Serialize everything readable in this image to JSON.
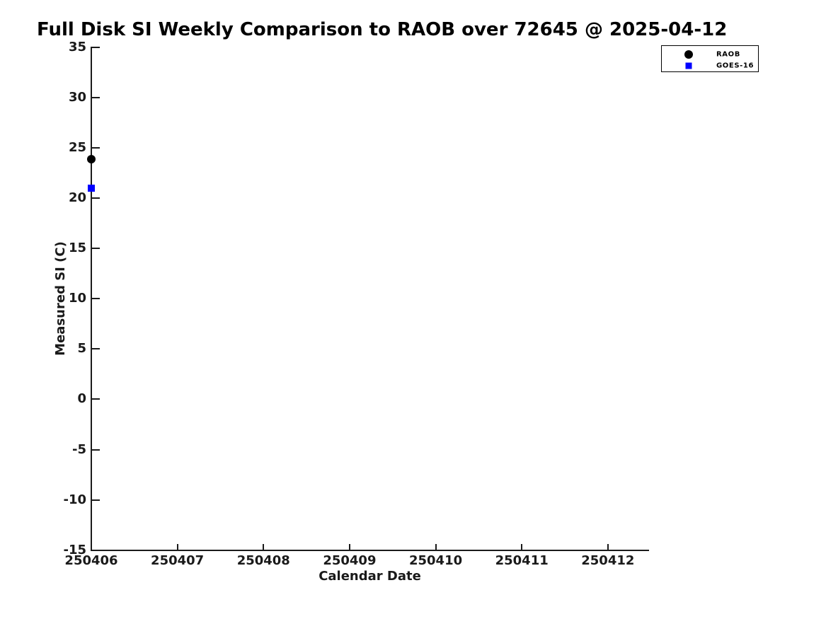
{
  "chart_data": {
    "type": "scatter",
    "title": "Full Disk SI Weekly Comparison to RAOB over 72645 @ 2025-04-12",
    "xlabel": "Calendar Date",
    "ylabel": "Measured SI (C)",
    "xlim": [
      250406,
      250412.47
    ],
    "ylim": [
      -15,
      35
    ],
    "xticks": [
      250406,
      250407,
      250408,
      250409,
      250410,
      250411,
      250412
    ],
    "yticks": [
      35,
      30,
      25,
      20,
      15,
      10,
      5,
      0,
      -5,
      -10,
      -15
    ],
    "grid": false,
    "tick_direction": "in",
    "legend": {
      "position": "outside-top-right"
    },
    "series": [
      {
        "name": "RAOB",
        "marker": "circle",
        "color": "#000000",
        "points": [
          {
            "x": 250406,
            "y": 23.9
          }
        ]
      },
      {
        "name": "GOES-16",
        "marker": "square",
        "color": "#0000ff",
        "points": [
          {
            "x": 250406,
            "y": 21.0
          }
        ]
      }
    ],
    "colors": {
      "background": "#ffffff",
      "axis": "#1a1a1a",
      "title": "#000000"
    }
  }
}
